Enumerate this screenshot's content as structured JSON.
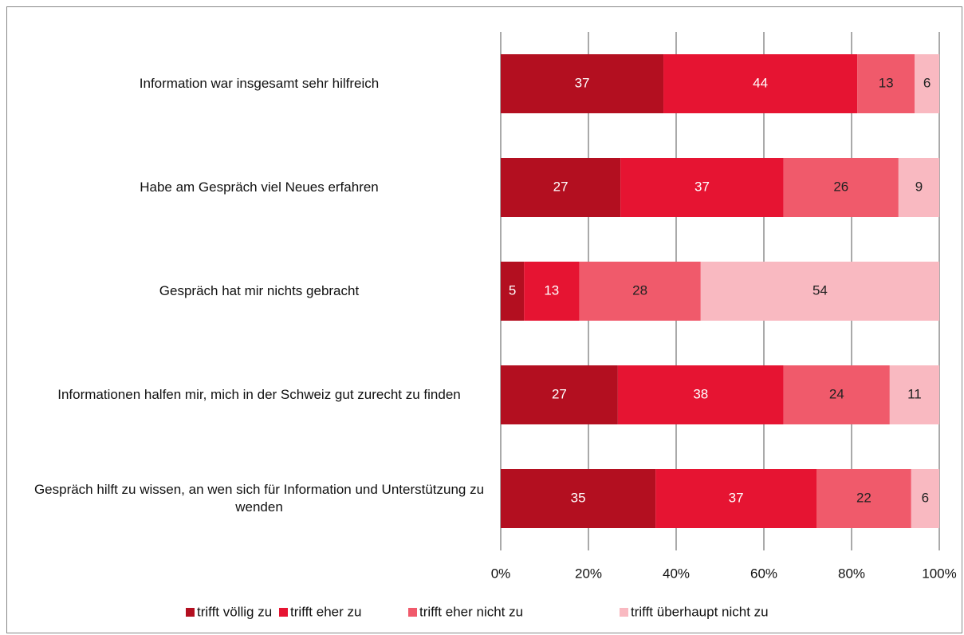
{
  "chart_data": {
    "type": "stacked_barh",
    "categories": [
      "Information war insgesamt sehr hilfreich",
      "Habe am Gespräch viel Neues erfahren",
      "Gespräch hat mir nichts gebracht",
      "Informationen halfen mir, mich in der Schweiz gut zurecht zu finden",
      "Gespräch hilft zu wissen, an wen sich für Information und Unterstützung zu wenden"
    ],
    "series": [
      {
        "name": "trifft völlig zu",
        "color": "#b30f20",
        "values": [
          37.1,
          27.3,
          5.3,
          26.7,
          35.3
        ],
        "value_labels": [
          "37",
          "27",
          "5",
          "27",
          "35"
        ]
      },
      {
        "name": "trifft eher zu",
        "color": "#e61432",
        "values": [
          44.2,
          37.2,
          12.6,
          37.8,
          36.7
        ],
        "value_labels": [
          "44",
          "37",
          "13",
          "38",
          "37"
        ]
      },
      {
        "name": "trifft eher nicht zu",
        "color": "#f05a6b",
        "values": [
          13.1,
          26.2,
          27.7,
          24.2,
          21.6
        ],
        "value_labels": [
          "13",
          "26",
          "28",
          "24",
          "22"
        ]
      },
      {
        "name": "trifft überhaupt nicht zu",
        "color": "#f9b9c1",
        "values": [
          5.6,
          9.3,
          54.4,
          11.3,
          6.4
        ],
        "value_labels": [
          "6",
          "9",
          "54",
          "11",
          "6"
        ]
      }
    ],
    "xlim": [
      0,
      100
    ],
    "xticks": [
      {
        "value": 0,
        "label": "0%"
      },
      {
        "value": 20,
        "label": "20%"
      },
      {
        "value": 40,
        "label": "40%"
      },
      {
        "value": 60,
        "label": "60%"
      },
      {
        "value": 80,
        "label": "80%"
      },
      {
        "value": 100,
        "label": "100%"
      }
    ],
    "grid": true,
    "legend": "bottom"
  }
}
